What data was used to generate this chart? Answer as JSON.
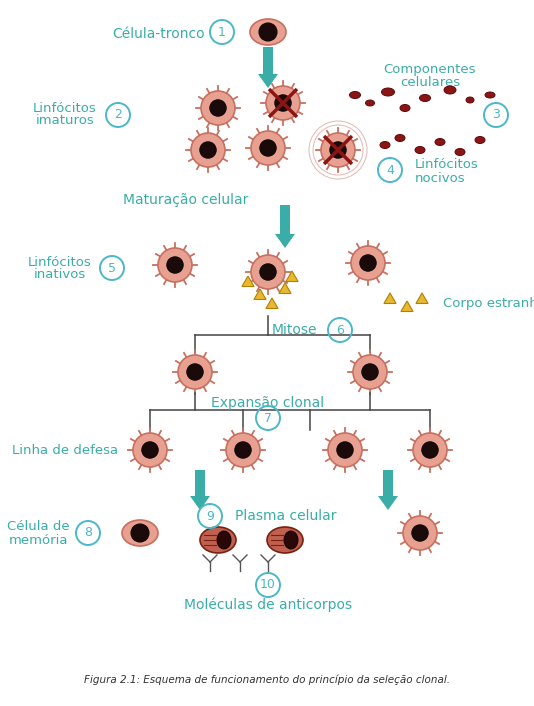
{
  "title": "Figura 2.1: Esquema de funcionamento do princípio da seleção clonal.",
  "bg_color": "#ffffff",
  "teal": "#3aada8",
  "blue_circle": "#4ab8c8",
  "text_color": "#3aada8",
  "dark_red": "#8b1515",
  "cell_body": "#e8a090",
  "cell_nucleus": "#1a0a0a",
  "cell_outer": "#c87060",
  "plasma_body": "#c06050",
  "yellow": "#e8b830",
  "line_color": "#444444",
  "labels": {
    "celula_tronco": "Célula-tronco",
    "linfocitos_imat_1": "Linfócitos",
    "linfocitos_imat_2": "imaturos",
    "componentes_1": "Componentes",
    "componentes_2": "celulares",
    "linfocitos_noc_1": "Linfócitos",
    "linfocitos_noc_2": "nocivos",
    "maturacao": "Maturação celular",
    "linfocitos_inat_1": "Linfócitos",
    "linfocitos_inat_2": "inativos",
    "corpo_estranho": "Corpo estranho",
    "mitose": "Mitose",
    "expansao_1": "Expansão clonal",
    "linha_defesa": "Linha de defesa",
    "celula_mem_1": "Célula de",
    "celula_mem_2": "memória",
    "plasma_celular": "Plasma celular",
    "anticorpos": "Moléculas de anticorpos"
  }
}
